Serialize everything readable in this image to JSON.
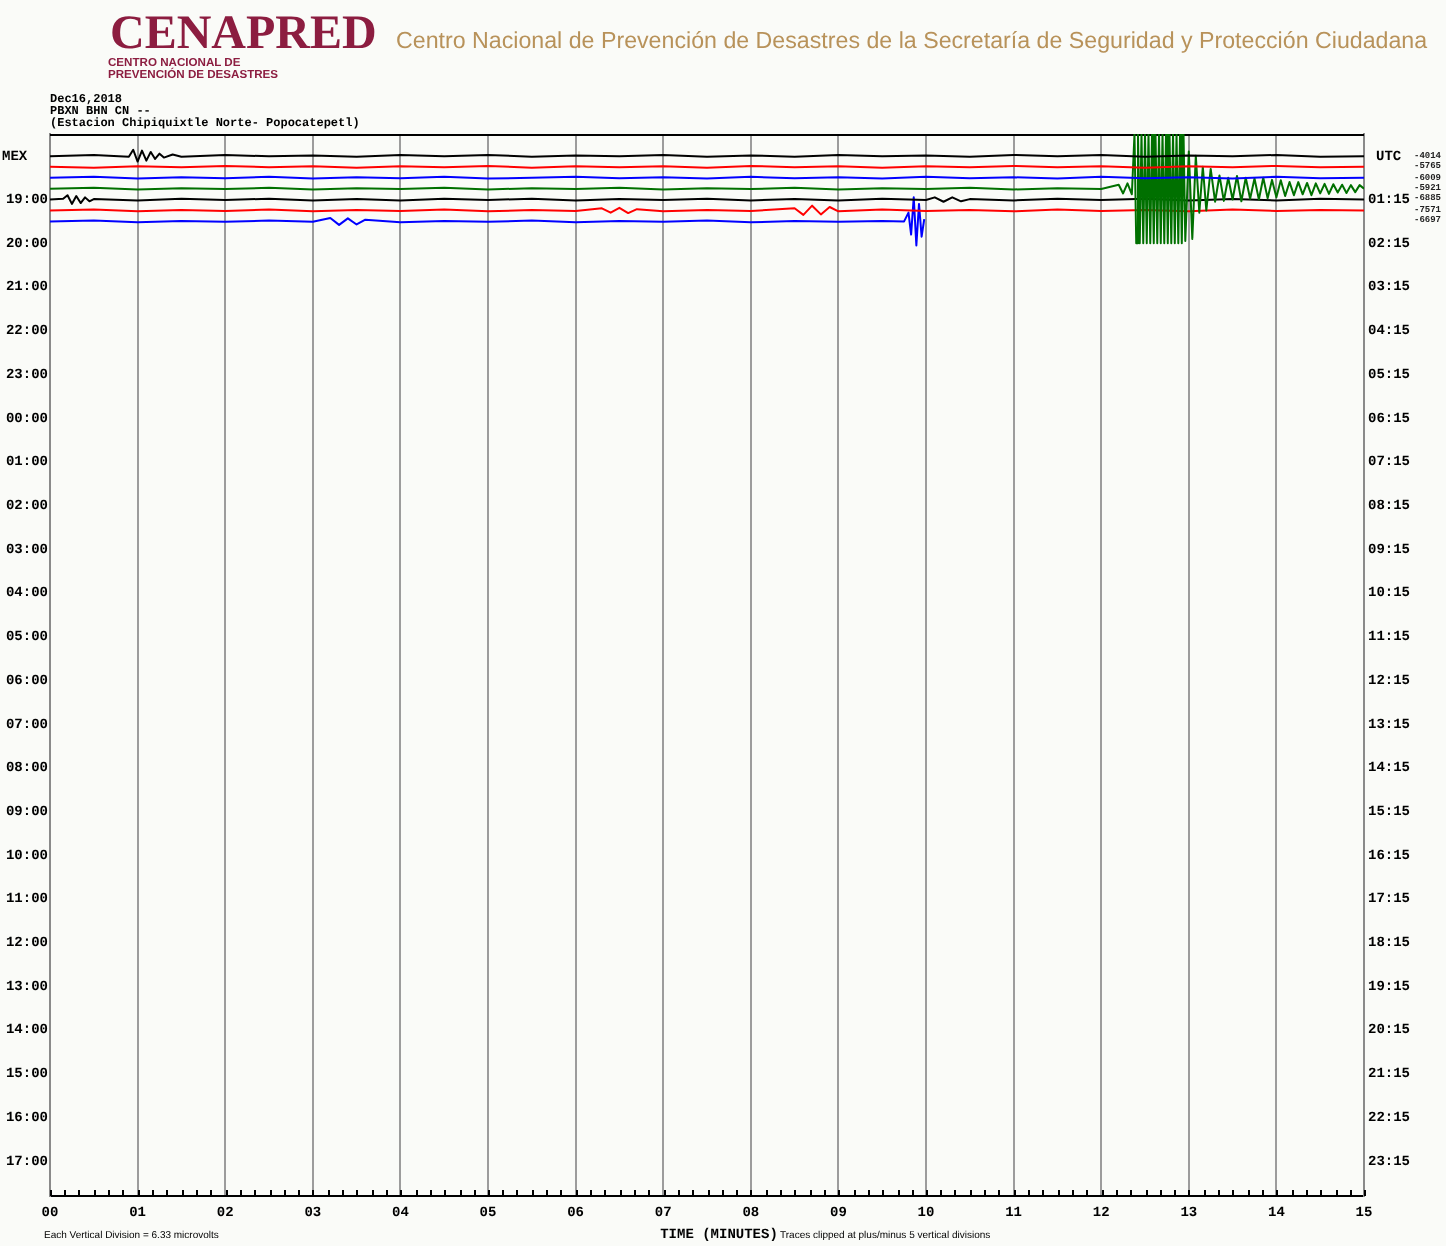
{
  "chart_data": {
    "type": "line",
    "title": "Centro Nacional de Prevención de Desastres de la Secretaría de Seguridad y Protección Ciudadana",
    "annotations": [
      "CENAPRED",
      "CENTRO NACIONAL DE",
      "PREVENCIÓN DE DESASTRES",
      "Dec16,2018",
      "PBXN BHN CN --",
      "(Estacion Chipiquixtle Norte- Popocatepetl)",
      "Each Vertical Division = 6.33 microvolts",
      "Traces clipped at plus/minus 5 vertical divisions",
      "-4014",
      "-5765",
      "-6009",
      "-5921",
      "-6885",
      "-7571",
      "-6697"
    ],
    "xlabel": "TIME (MINUTES)",
    "ylabel": "MEX",
    "y2label": "UTC",
    "xlim": [
      0,
      15
    ],
    "ylim": [
      "2018-12-17T17:48",
      "2018-12-16T17:30"
    ],
    "y2lim": [
      24.05,
      -0.25
    ],
    "xticks": [
      {
        "value": 0,
        "label": "00"
      },
      {
        "value": 0.17,
        "label": null
      },
      {
        "value": 0.33,
        "label": null
      },
      {
        "value": 0.5,
        "label": null
      },
      {
        "value": 0.67,
        "label": null
      },
      {
        "value": 0.83,
        "label": null
      },
      {
        "value": 1,
        "label": "01"
      },
      {
        "value": 1.17,
        "label": null
      },
      {
        "value": 1.33,
        "label": null
      },
      {
        "value": 1.5,
        "label": null
      },
      {
        "value": 1.67,
        "label": null
      },
      {
        "value": 1.83,
        "label": null
      },
      {
        "value": 2,
        "label": "02"
      },
      {
        "value": 2.17,
        "label": null
      },
      {
        "value": 2.33,
        "label": null
      },
      {
        "value": 2.5,
        "label": null
      },
      {
        "value": 2.67,
        "label": null
      },
      {
        "value": 2.83,
        "label": null
      },
      {
        "value": 3,
        "label": "03"
      },
      {
        "value": 3.17,
        "label": null
      },
      {
        "value": 3.33,
        "label": null
      },
      {
        "value": 3.5,
        "label": null
      },
      {
        "value": 3.67,
        "label": null
      },
      {
        "value": 3.83,
        "label": null
      },
      {
        "value": 4,
        "label": "04"
      },
      {
        "value": 4.17,
        "label": null
      },
      {
        "value": 4.33,
        "label": null
      },
      {
        "value": 4.5,
        "label": null
      },
      {
        "value": 4.67,
        "label": null
      },
      {
        "value": 4.83,
        "label": null
      },
      {
        "value": 5,
        "label": "05"
      },
      {
        "value": 5.17,
        "label": null
      },
      {
        "value": 5.33,
        "label": null
      },
      {
        "value": 5.5,
        "label": null
      },
      {
        "value": 5.67,
        "label": null
      },
      {
        "value": 5.83,
        "label": null
      },
      {
        "value": 6,
        "label": "06"
      },
      {
        "value": 6.17,
        "label": null
      },
      {
        "value": 6.33,
        "label": null
      },
      {
        "value": 6.5,
        "label": null
      },
      {
        "value": 6.67,
        "label": null
      },
      {
        "value": 6.83,
        "label": null
      },
      {
        "value": 7,
        "label": "07"
      },
      {
        "value": 7.17,
        "label": null
      },
      {
        "value": 7.33,
        "label": null
      },
      {
        "value": 7.5,
        "label": null
      },
      {
        "value": 7.67,
        "label": null
      },
      {
        "value": 7.83,
        "label": null
      },
      {
        "value": 8,
        "label": "08"
      },
      {
        "value": 8.17,
        "label": null
      },
      {
        "value": 8.33,
        "label": null
      },
      {
        "value": 8.5,
        "label": null
      },
      {
        "value": 8.67,
        "label": null
      },
      {
        "value": 8.83,
        "label": null
      },
      {
        "value": 9,
        "label": "09"
      },
      {
        "value": 9.17,
        "label": null
      },
      {
        "value": 9.33,
        "label": null
      },
      {
        "value": 9.5,
        "label": null
      },
      {
        "value": 9.67,
        "label": null
      },
      {
        "value": 9.83,
        "label": null
      },
      10,
      {
        "value": 10.17,
        "label": null
      },
      {
        "value": 10.33,
        "label": null
      },
      {
        "value": 10.5,
        "label": null
      },
      {
        "value": 10.67,
        "label": null
      },
      {
        "value": 10.83,
        "label": null
      },
      11,
      {
        "value": 11.17,
        "label": null
      },
      {
        "value": 11.33,
        "label": null
      },
      {
        "value": 11.5,
        "label": null
      },
      {
        "value": 11.67,
        "label": null
      },
      {
        "value": 11.83,
        "label": null
      },
      12,
      {
        "value": 12.17,
        "label": null
      },
      {
        "value": 12.33,
        "label": null
      },
      {
        "value": 12.5,
        "label": null
      },
      {
        "value": 12.67,
        "label": null
      },
      {
        "value": 12.83,
        "label": null
      },
      13,
      {
        "value": 13.17,
        "label": null
      },
      {
        "value": 13.33,
        "label": null
      },
      {
        "value": 13.5,
        "label": null
      },
      {
        "value": 13.67,
        "label": null
      },
      {
        "value": 13.83,
        "label": null
      },
      14,
      {
        "value": 14.17,
        "label": null
      },
      {
        "value": 14.33,
        "label": null
      },
      {
        "value": 14.5,
        "label": null
      },
      {
        "value": 14.67,
        "label": null
      },
      {
        "value": 14.83,
        "label": null
      },
      15
    ],
    "yticks": [
      {
        "value": "2018-12-16T19:00",
        "label": "19:00"
      },
      {
        "value": "2018-12-16T20:00",
        "label": "20:00"
      },
      {
        "value": "2018-12-16T21:00",
        "label": "21:00"
      },
      {
        "value": "2018-12-16T22:00",
        "label": "22:00"
      },
      {
        "value": "2018-12-16T23:00",
        "label": "23:00"
      },
      {
        "value": "2018-12-17T00:00",
        "label": "00:00"
      },
      {
        "value": "2018-12-17T01:00",
        "label": "01:00"
      },
      {
        "value": "2018-12-17T02:00",
        "label": "02:00"
      },
      {
        "value": "2018-12-17T03:00",
        "label": "03:00"
      },
      {
        "value": "2018-12-17T04:00",
        "label": "04:00"
      },
      {
        "value": "2018-12-17T05:00",
        "label": "05:00"
      },
      {
        "value": "2018-12-17T06:00",
        "label": "06:00"
      },
      {
        "value": "2018-12-17T07:00",
        "label": "07:00"
      },
      {
        "value": "2018-12-17T08:00",
        "label": "08:00"
      },
      {
        "value": "2018-12-17T09:00",
        "label": "09:00"
      },
      {
        "value": "2018-12-17T10:00",
        "label": "10:00"
      },
      {
        "value": "2018-12-17T11:00",
        "label": "11:00"
      },
      {
        "value": "2018-12-17T12:00",
        "label": "12:00"
      },
      {
        "value": "2018-12-17T13:00",
        "label": "13:00"
      },
      {
        "value": "2018-12-17T14:00",
        "label": "14:00"
      },
      {
        "value": "2018-12-17T15:00",
        "label": "15:00"
      },
      {
        "value": "2018-12-17T16:00",
        "label": "16:00"
      },
      {
        "value": "2018-12-17T17:00",
        "label": "17:00"
      }
    ],
    "y2ticks": [
      {
        "value": 1.25,
        "label": "01:15"
      },
      {
        "value": 2.25,
        "label": "02:15"
      },
      {
        "value": 3.25,
        "label": "03:15"
      },
      {
        "value": 4.25,
        "label": "04:15"
      },
      {
        "value": 5.25,
        "label": "05:15"
      },
      {
        "value": 6.25,
        "label": "06:15"
      },
      {
        "value": 7.25,
        "label": "07:15"
      },
      {
        "value": 8.25,
        "label": "08:15"
      },
      {
        "value": 9.25,
        "label": "09:15"
      },
      {
        "value": 10.25,
        "label": "10:15"
      },
      {
        "value": 11.25,
        "label": "11:15"
      },
      {
        "value": 12.25,
        "label": "12:15"
      },
      {
        "value": 13.25,
        "label": "13:15"
      },
      {
        "value": 14.25,
        "label": "14:15"
      },
      {
        "value": 15.25,
        "label": "15:15"
      },
      {
        "value": 16.25,
        "label": "16:15"
      },
      {
        "value": 17.25,
        "label": "17:15"
      },
      {
        "value": 18.25,
        "label": "18:15"
      },
      {
        "value": 19.25,
        "label": "19:15"
      },
      {
        "value": 20.25,
        "label": "20:15"
      },
      {
        "value": 21.25,
        "label": "21:15"
      },
      {
        "value": 22.25,
        "label": "22:15"
      },
      {
        "value": 23.25,
        "label": "23:15"
      }
    ],
    "grid": "x",
    "series": [
      {
        "color": "#000000",
        "axis": "y2",
        "x": [
          0,
          0.5,
          0.9,
          0.95,
          1,
          1.05,
          1.1,
          1.15,
          1.2,
          1.25,
          1.3,
          1.4,
          1.5,
          2,
          2.5,
          3,
          3.5,
          4,
          4.5,
          5,
          5.5,
          6,
          6.5,
          7,
          7.5,
          8,
          8.5,
          9,
          9.5,
          10,
          10.5,
          11,
          11.5,
          12,
          12.5,
          13,
          13.5,
          14,
          14.5,
          15
        ],
        "values": [
          0.26,
          0.23,
          0.27,
          0.11,
          0.38,
          0.13,
          0.36,
          0.16,
          0.32,
          0.2,
          0.29,
          0.22,
          0.27,
          0.23,
          0.26,
          0.24,
          0.27,
          0.23,
          0.26,
          0.23,
          0.27,
          0.24,
          0.26,
          0.23,
          0.27,
          0.24,
          0.27,
          0.23,
          0.26,
          0.24,
          0.27,
          0.23,
          0.26,
          0.23,
          0.27,
          0.24,
          0.26,
          0.23,
          0.27,
          0.26
        ]
      },
      {
        "color": "#ff0000",
        "axis": "y2",
        "x": [
          0,
          0.5,
          1,
          1.5,
          2,
          2.5,
          3,
          3.5,
          4,
          4.5,
          5,
          5.5,
          6,
          6.5,
          7,
          7.5,
          8,
          8.5,
          9,
          9.5,
          10,
          10.5,
          11,
          11.5,
          12,
          12.5,
          13,
          13.5,
          14,
          14.5,
          15
        ],
        "values": [
          0.5,
          0.52,
          0.49,
          0.51,
          0.48,
          0.51,
          0.49,
          0.52,
          0.49,
          0.51,
          0.48,
          0.52,
          0.49,
          0.51,
          0.49,
          0.52,
          0.48,
          0.51,
          0.49,
          0.52,
          0.49,
          0.51,
          0.48,
          0.51,
          0.49,
          0.52,
          0.49,
          0.51,
          0.48,
          0.51,
          0.5
        ]
      },
      {
        "color": "#0000ff",
        "axis": "y2",
        "x": [
          0,
          0.5,
          1,
          1.5,
          2,
          2.5,
          3,
          3.5,
          4,
          4.5,
          5,
          5.5,
          6,
          6.5,
          7,
          7.5,
          8,
          8.5,
          9,
          9.5,
          10,
          10.5,
          11,
          11.5,
          12,
          12.5,
          13,
          13.5,
          14,
          14.5,
          15
        ],
        "values": [
          0.75,
          0.73,
          0.77,
          0.74,
          0.76,
          0.73,
          0.77,
          0.74,
          0.76,
          0.73,
          0.77,
          0.75,
          0.73,
          0.76,
          0.74,
          0.77,
          0.73,
          0.76,
          0.74,
          0.77,
          0.73,
          0.76,
          0.74,
          0.77,
          0.73,
          0.76,
          0.74,
          0.77,
          0.73,
          0.76,
          0.75
        ]
      },
      {
        "color": "#007000",
        "axis": "y2",
        "x": [
          0,
          0.5,
          1,
          1.5,
          2,
          2.5,
          3,
          3.5,
          4,
          4.5,
          5,
          5.5,
          6,
          6.5,
          7,
          7.5,
          8,
          8.5,
          9,
          9.5,
          10,
          10.5,
          11,
          11.5,
          12,
          12.2,
          12.25,
          12.3,
          12.35,
          12.38,
          12.4,
          12.42,
          12.44,
          12.46,
          12.48,
          12.5,
          12.52,
          12.54,
          12.56,
          12.58,
          12.6,
          12.62,
          12.64,
          12.66,
          12.68,
          12.7,
          12.72,
          12.74,
          12.76,
          12.78,
          12.8,
          12.82,
          12.84,
          12.86,
          12.88,
          12.9,
          12.92,
          12.94,
          12.96,
          13,
          13.04,
          13.08,
          13.12,
          13.16,
          13.2,
          13.25,
          13.3,
          13.35,
          13.4,
          13.45,
          13.5,
          13.55,
          13.6,
          13.65,
          13.7,
          13.75,
          13.8,
          13.85,
          13.9,
          13.95,
          14,
          14.05,
          14.1,
          14.15,
          14.2,
          14.25,
          14.3,
          14.35,
          14.4,
          14.45,
          14.5,
          14.55,
          14.6,
          14.65,
          14.7,
          14.75,
          14.8,
          14.85,
          14.9,
          14.95,
          15
        ],
        "values": [
          1,
          0.98,
          1.02,
          0.99,
          1.01,
          0.98,
          1.02,
          0.99,
          1.01,
          0.98,
          1.02,
          0.99,
          1.01,
          0.98,
          1.02,
          0.99,
          1.01,
          0.98,
          1.02,
          0.99,
          1.01,
          0.98,
          1.02,
          0.99,
          1.01,
          0.91,
          1.11,
          0.88,
          1.13,
          -0.25,
          2.25,
          -0.25,
          2.25,
          -0.25,
          2.25,
          -0.25,
          2.25,
          -0.25,
          2.25,
          -0.25,
          2.25,
          -0.25,
          2.25,
          -0.25,
          2.25,
          -0.25,
          2.25,
          -0.25,
          2.25,
          -0.25,
          2.25,
          -0.25,
          2.25,
          -0.25,
          2.25,
          -0.25,
          2.25,
          -0.25,
          2.2,
          0.15,
          2.15,
          0.25,
          1.55,
          0.5,
          1.5,
          0.55,
          1.3,
          0.7,
          1.28,
          0.75,
          1.25,
          0.71,
          1.29,
          0.75,
          1.23,
          0.77,
          1.25,
          0.75,
          1.22,
          0.8,
          1.2,
          0.81,
          1.17,
          0.85,
          1.15,
          0.85,
          1.13,
          0.87,
          1.15,
          0.88,
          1.11,
          0.89,
          1.12,
          0.9,
          1.09,
          0.91,
          1.1,
          0.92,
          1.08,
          0.92,
          1
        ]
      },
      {
        "color": "#000000",
        "axis": "y2",
        "x": [
          0,
          0.15,
          0.2,
          0.25,
          0.3,
          0.35,
          0.4,
          0.45,
          0.5,
          1,
          1.5,
          2,
          2.5,
          3,
          3.5,
          4,
          4.5,
          5,
          5.5,
          6,
          6.5,
          7,
          7.5,
          8,
          8.5,
          9,
          9.5,
          10,
          10.1,
          10.2,
          10.3,
          10.4,
          10.5,
          11,
          11.5,
          12,
          12.5,
          13,
          13.5,
          14,
          14.5,
          15
        ],
        "values": [
          1.25,
          1.23,
          1.15,
          1.35,
          1.17,
          1.33,
          1.2,
          1.29,
          1.24,
          1.27,
          1.23,
          1.26,
          1.23,
          1.27,
          1.24,
          1.27,
          1.23,
          1.26,
          1.23,
          1.27,
          1.24,
          1.26,
          1.23,
          1.27,
          1.24,
          1.27,
          1.23,
          1.26,
          1.2,
          1.3,
          1.2,
          1.29,
          1.24,
          1.27,
          1.23,
          1.26,
          1.23,
          1.27,
          1.24,
          1.27,
          1.23,
          1.25
        ]
      },
      {
        "color": "#ff0000",
        "axis": "y2",
        "x": [
          0,
          0.5,
          1,
          1.5,
          2,
          2.5,
          3,
          3.5,
          4,
          4.5,
          5,
          5.5,
          6,
          6.3,
          6.4,
          6.5,
          6.6,
          6.7,
          7,
          7.5,
          8,
          8.5,
          8.6,
          8.7,
          8.8,
          8.9,
          9,
          9.5,
          10,
          10.5,
          11,
          11.5,
          12,
          12.5,
          13,
          13.5,
          14,
          14.5,
          15
        ],
        "values": [
          1.5,
          1.48,
          1.52,
          1.49,
          1.51,
          1.48,
          1.52,
          1.49,
          1.51,
          1.48,
          1.52,
          1.49,
          1.51,
          1.45,
          1.55,
          1.44,
          1.56,
          1.47,
          1.52,
          1.49,
          1.51,
          1.45,
          1.6,
          1.39,
          1.59,
          1.42,
          1.52,
          1.48,
          1.51,
          1.49,
          1.52,
          1.48,
          1.51,
          1.49,
          1.52,
          1.48,
          1.51,
          1.49,
          1.5
        ]
      },
      {
        "color": "#0000ff",
        "axis": "y2",
        "x": [
          0,
          0.5,
          1,
          1.5,
          2,
          2.5,
          3,
          3.2,
          3.3,
          3.4,
          3.5,
          3.6,
          4,
          4.5,
          5,
          5.5,
          6,
          6.5,
          7,
          7.5,
          8,
          8.5,
          9,
          9.5,
          9.75,
          9.8,
          9.83,
          9.86,
          9.89,
          9.92,
          9.95,
          9.98
        ],
        "values": [
          1.75,
          1.73,
          1.77,
          1.74,
          1.76,
          1.73,
          1.76,
          1.67,
          1.83,
          1.68,
          1.82,
          1.71,
          1.77,
          1.74,
          1.76,
          1.73,
          1.77,
          1.74,
          1.76,
          1.73,
          1.77,
          1.74,
          1.76,
          1.74,
          1.75,
          1.55,
          2.05,
          1.2,
          2.3,
          1.35,
          2.1,
          1.7
        ]
      }
    ]
  }
}
